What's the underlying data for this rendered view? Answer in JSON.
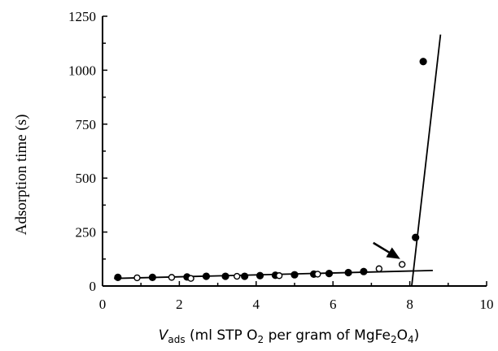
{
  "chart_data": {
    "type": "scatter",
    "xlabel": {
      "prefix": "V",
      "subscript": "ads",
      "middle": " (ml STP O",
      "o2_sub": "2",
      "after": " per gram of MgFe",
      "fe_sub": "2",
      "o_text": "O",
      "o4_sub": "4",
      "close": ")"
    },
    "ylabel": "Adsorption time  (s)",
    "xlim": [
      0,
      10
    ],
    "ylim": [
      0,
      1250
    ],
    "x_ticks": [
      0,
      2,
      4,
      6,
      8,
      10
    ],
    "y_ticks": [
      0,
      250,
      500,
      750,
      1000,
      1250
    ],
    "x_tick_labels": [
      "0",
      "2",
      "4",
      "6",
      "8",
      "10"
    ],
    "y_tick_labels": [
      "0",
      "250",
      "500",
      "750",
      "1000",
      "1250"
    ],
    "series": [
      {
        "marker": "filled",
        "points": [
          [
            0.4,
            40
          ],
          [
            1.3,
            40
          ],
          [
            2.2,
            42
          ],
          [
            2.7,
            45
          ],
          [
            3.2,
            45
          ],
          [
            3.7,
            45
          ],
          [
            4.1,
            48
          ],
          [
            4.5,
            50
          ],
          [
            5.0,
            52
          ],
          [
            5.5,
            55
          ],
          [
            5.9,
            58
          ],
          [
            6.4,
            62
          ],
          [
            6.8,
            67
          ],
          [
            8.15,
            225
          ],
          [
            8.35,
            1040
          ]
        ]
      },
      {
        "marker": "open",
        "points": [
          [
            0.9,
            38
          ],
          [
            1.8,
            40
          ],
          [
            2.3,
            35
          ],
          [
            3.5,
            45
          ],
          [
            4.6,
            48
          ],
          [
            5.6,
            55
          ],
          [
            7.2,
            80
          ],
          [
            7.8,
            100
          ]
        ]
      }
    ],
    "lines": [
      {
        "x": [
          0.3,
          8.6
        ],
        "y": [
          35,
          72
        ]
      },
      {
        "x": [
          8.05,
          8.8
        ],
        "y": [
          0,
          1165
        ]
      }
    ],
    "annotation": {
      "type": "arrow",
      "from": [
        7.05,
        200
      ],
      "to": [
        7.75,
        125
      ]
    }
  }
}
